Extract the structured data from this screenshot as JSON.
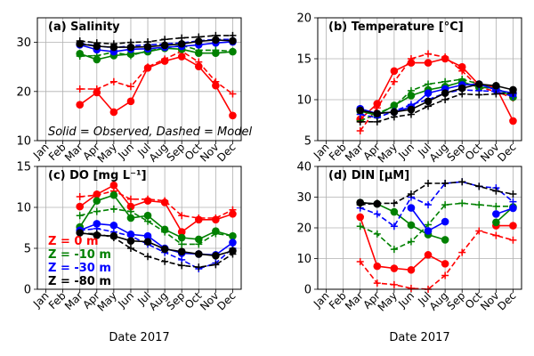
{
  "chart_data": {
    "type": "line",
    "months": [
      "Jan",
      "Feb",
      "Mar",
      "Apr",
      "May",
      "Jun",
      "Jul",
      "Aug",
      "Sep",
      "Oct",
      "Nov",
      "Dec"
    ],
    "xlabel": "Date 2017",
    "depth_colors": {
      "0 m": "#ff0000",
      "-10 m": "#008000",
      "-30 m": "#0000ff",
      "-80 m": "#000000"
    },
    "legend": [
      {
        "label": "Z =   0 m",
        "color": "#ff0000"
      },
      {
        "label": "Z =  -10 m",
        "color": "#008000"
      },
      {
        "label": "Z =  -30 m",
        "color": "#0000ff"
      },
      {
        "label": "Z =   -80 m",
        "color": "#000000"
      }
    ],
    "panels": [
      {
        "id": "salinity",
        "title": "(a) Salinity",
        "note": "Solid = Observed, Dashed = Model",
        "ylim": [
          10,
          35
        ],
        "yticks": [
          10,
          20,
          30
        ],
        "series": [
          {
            "kind": "observed",
            "color": "#ff0000",
            "x": [
              3,
              4,
              5,
              6,
              7,
              8,
              9,
              10,
              11,
              12
            ],
            "y": [
              17.3,
              19.8,
              15.8,
              18.0,
              24.8,
              26.2,
              27.1,
              25.1,
              21.2,
              15.1
            ]
          },
          {
            "kind": "model",
            "color": "#ff0000",
            "x": [
              3,
              4,
              5,
              6,
              7,
              8,
              9,
              10,
              11,
              12
            ],
            "y": [
              20.5,
              20.5,
              22.0,
              21.0,
              25.0,
              26.6,
              28.2,
              26.0,
              22.0,
              19.5
            ]
          },
          {
            "kind": "observed",
            "color": "#008000",
            "x": [
              3,
              4,
              5,
              6,
              7,
              8,
              9,
              10,
              11,
              12
            ],
            "y": [
              27.7,
              26.5,
              27.3,
              27.6,
              28.1,
              28.8,
              28.6,
              27.8,
              27.8,
              28.1
            ]
          },
          {
            "kind": "model",
            "color": "#008000",
            "x": [
              3,
              4,
              5,
              6,
              7,
              8,
              9,
              10,
              11,
              12
            ],
            "y": [
              27.2,
              27.3,
              28.0,
              27.3,
              28.3,
              28.8,
              29.4,
              28.4,
              28.4,
              28.2
            ]
          },
          {
            "kind": "observed",
            "color": "#0000ff",
            "x": [
              3,
              4,
              5,
              6,
              7,
              8,
              9,
              10,
              11,
              12
            ],
            "y": [
              29.5,
              28.5,
              28.1,
              28.6,
              28.7,
              29.0,
              29.2,
              29.5,
              29.9,
              30.1
            ]
          },
          {
            "kind": "model",
            "color": "#0000ff",
            "x": [
              3,
              4,
              5,
              6,
              7,
              8,
              9,
              10,
              11,
              12
            ],
            "y": [
              29.8,
              29.3,
              28.9,
              29.3,
              29.5,
              29.7,
              29.9,
              30.3,
              30.6,
              30.6
            ]
          },
          {
            "kind": "observed",
            "color": "#000000",
            "x": [
              3,
              4,
              5,
              6,
              7,
              8,
              9,
              10,
              11,
              12
            ],
            "y": [
              29.7,
              29.2,
              29.0,
              29.0,
              29.1,
              29.4,
              29.7,
              30.2,
              30.5,
              30.3
            ]
          },
          {
            "kind": "model",
            "color": "#000000",
            "x": [
              3,
              4,
              5,
              6,
              7,
              8,
              9,
              10,
              11,
              12
            ],
            "y": [
              30.3,
              29.9,
              29.7,
              30.0,
              30.1,
              30.6,
              30.9,
              31.1,
              31.4,
              31.4
            ]
          }
        ]
      },
      {
        "id": "temperature",
        "title": "(b) Temperature [°C]",
        "ylim": [
          5,
          20
        ],
        "yticks": [
          5,
          10,
          15,
          20
        ],
        "series": [
          {
            "kind": "observed",
            "color": "#ff0000",
            "x": [
              3,
              4,
              5,
              6,
              7,
              8,
              9,
              10,
              11,
              12
            ],
            "y": [
              7.6,
              9.5,
              13.5,
              14.5,
              14.5,
              15.0,
              14.0,
              11.8,
              11.5,
              7.4
            ]
          },
          {
            "kind": "model",
            "color": "#ff0000",
            "x": [
              3,
              4,
              5,
              6,
              7,
              8,
              9,
              10,
              11,
              12
            ],
            "y": [
              6.2,
              9.0,
              12.2,
              15.0,
              15.6,
              15.2,
              13.5,
              11.5,
              11.0,
              10.2
            ]
          },
          {
            "kind": "observed",
            "color": "#008000",
            "x": [
              3,
              4,
              5,
              6,
              7,
              8,
              9,
              10,
              11,
              12
            ],
            "y": [
              8.6,
              8.1,
              9.3,
              10.5,
              11.2,
              11.6,
              12.2,
              11.5,
              11.4,
              10.3
            ]
          },
          {
            "kind": "model",
            "color": "#008000",
            "x": [
              3,
              4,
              5,
              6,
              7,
              8,
              9,
              10,
              11,
              12
            ],
            "y": [
              7.4,
              8.3,
              9.2,
              11.1,
              11.9,
              12.2,
              12.5,
              11.9,
              11.3,
              10.6
            ]
          },
          {
            "kind": "observed",
            "color": "#0000ff",
            "x": [
              3,
              4,
              5,
              6,
              7,
              8,
              9,
              10,
              11,
              12
            ],
            "y": [
              8.9,
              8.3,
              8.5,
              9.1,
              10.8,
              11.3,
              11.8,
              11.9,
              11.2,
              10.8
            ]
          },
          {
            "kind": "model",
            "color": "#0000ff",
            "x": [
              3,
              4,
              5,
              6,
              7,
              8,
              9,
              10,
              11,
              12
            ],
            "y": [
              8.2,
              7.8,
              8.6,
              9.4,
              10.0,
              10.8,
              11.2,
              11.1,
              11.0,
              10.4
            ]
          },
          {
            "kind": "observed",
            "color": "#000000",
            "x": [
              3,
              4,
              5,
              6,
              7,
              8,
              9,
              10,
              11,
              12
            ],
            "y": [
              8.7,
              8.3,
              8.5,
              8.8,
              9.8,
              10.8,
              11.4,
              11.9,
              11.7,
              11.2
            ]
          },
          {
            "kind": "model",
            "color": "#000000",
            "x": [
              3,
              4,
              5,
              6,
              7,
              8,
              9,
              10,
              11,
              12
            ],
            "y": [
              7.3,
              7.3,
              7.9,
              8.2,
              9.2,
              10.0,
              10.7,
              10.6,
              10.7,
              10.8
            ]
          }
        ]
      },
      {
        "id": "do",
        "title": "(c) DO [mg L⁻¹]",
        "ylim": [
          0,
          15
        ],
        "yticks": [
          0,
          5,
          10,
          15
        ],
        "series": [
          {
            "kind": "observed",
            "color": "#ff0000",
            "x": [
              3,
              4,
              5,
              6,
              7,
              8,
              9,
              10,
              11,
              12
            ],
            "y": [
              10.1,
              11.6,
              12.7,
              10.1,
              10.8,
              10.6,
              7.0,
              8.5,
              8.5,
              9.2
            ]
          },
          {
            "kind": "model",
            "color": "#ff0000",
            "x": [
              3,
              4,
              5,
              6,
              7,
              8,
              9,
              10,
              11,
              12
            ],
            "y": [
              11.3,
              11.5,
              12.0,
              11.0,
              11.0,
              10.8,
              9.0,
              8.7,
              8.7,
              9.7
            ]
          },
          {
            "kind": "observed",
            "color": "#008000",
            "x": [
              3,
              4,
              5,
              6,
              7,
              8,
              9,
              10,
              11,
              12
            ],
            "y": [
              7.6,
              10.8,
              11.5,
              8.7,
              9.0,
              7.3,
              6.3,
              6.1,
              7.1,
              6.5
            ]
          },
          {
            "kind": "model",
            "color": "#008000",
            "x": [
              3,
              4,
              5,
              6,
              7,
              8,
              9,
              10,
              11,
              12
            ],
            "y": [
              9.0,
              9.5,
              9.8,
              9.5,
              8.3,
              7.0,
              5.5,
              5.5,
              6.8,
              6.5
            ]
          },
          {
            "kind": "observed",
            "color": "#0000ff",
            "x": [
              3,
              4,
              5,
              6,
              7,
              8,
              9,
              10,
              11,
              12
            ],
            "y": [
              7.2,
              8.0,
              7.8,
              6.7,
              6.5,
              5.0,
              4.4,
              4.3,
              4.2,
              5.7
            ]
          },
          {
            "kind": "model",
            "color": "#0000ff",
            "x": [
              3,
              4,
              5,
              6,
              7,
              8,
              9,
              10,
              11,
              12
            ],
            "y": [
              7.2,
              7.4,
              7.0,
              6.5,
              5.5,
              4.5,
              3.6,
              2.5,
              3.2,
              5.0
            ]
          },
          {
            "kind": "observed",
            "color": "#000000",
            "x": [
              3,
              4,
              5,
              6,
              7,
              8,
              9,
              10,
              11,
              12
            ],
            "y": [
              6.9,
              6.6,
              6.5,
              5.9,
              5.8,
              4.9,
              4.6,
              4.3,
              4.1,
              4.7
            ]
          },
          {
            "kind": "model",
            "color": "#000000",
            "x": [
              3,
              4,
              5,
              6,
              7,
              8,
              9,
              10,
              11,
              12
            ],
            "y": [
              6.8,
              6.8,
              6.3,
              5.0,
              4.0,
              3.4,
              2.9,
              2.7,
              3.0,
              4.3
            ]
          }
        ]
      },
      {
        "id": "din",
        "title": "(d) DIN  [μM]",
        "ylim": [
          0,
          40
        ],
        "yticks": [
          0,
          10,
          20,
          30,
          40
        ],
        "series": [
          {
            "kind": "observed",
            "color": "#ff0000",
            "x": [
              3,
              4,
              5,
              6,
              7,
              8
            ],
            "y": [
              23.5,
              7.5,
              6.8,
              6.3,
              11.2,
              8.3
            ]
          },
          {
            "kind": "observed",
            "color": "#ff0000",
            "x": [
              11,
              12
            ],
            "y": [
              20.7,
              20.7
            ]
          },
          {
            "kind": "model",
            "color": "#ff0000",
            "x": [
              3,
              4,
              5,
              6,
              7,
              8,
              9,
              10,
              11,
              12
            ],
            "y": [
              9.0,
              2.0,
              1.5,
              0.3,
              0.0,
              4.5,
              12.0,
              19.0,
              17.5,
              16.0
            ]
          },
          {
            "kind": "observed",
            "color": "#008000",
            "x": [
              3,
              4,
              5,
              6,
              7,
              8
            ],
            "y": [
              28.2,
              27.8,
              25.2,
              20.9,
              17.8,
              16.1
            ]
          },
          {
            "kind": "observed",
            "color": "#008000",
            "x": [
              11,
              12
            ],
            "y": [
              21.8,
              26.8
            ]
          },
          {
            "kind": "model",
            "color": "#008000",
            "x": [
              3,
              4,
              5,
              6,
              7,
              8,
              9,
              10,
              11,
              12
            ],
            "y": [
              20.5,
              18.0,
              13.0,
              15.5,
              21.0,
              27.5,
              28.0,
              27.5,
              27.0,
              27.0
            ]
          },
          {
            "kind": "observed",
            "color": "#0000ff",
            "x": [
              6,
              7,
              8
            ],
            "y": [
              26.5,
              19.0,
              22.0
            ]
          },
          {
            "kind": "observed",
            "color": "#0000ff",
            "x": [
              11,
              12
            ],
            "y": [
              24.5,
              26.4
            ]
          },
          {
            "kind": "model",
            "color": "#0000ff",
            "x": [
              3,
              4,
              5,
              6,
              7,
              8,
              9,
              10,
              11,
              12
            ],
            "y": [
              26.5,
              24.5,
              20.5,
              30.0,
              27.5,
              34.5,
              35.0,
              33.5,
              33.0,
              28.5
            ]
          },
          {
            "kind": "observed",
            "color": "#000000",
            "x": [
              3,
              4
            ],
            "y": [
              28.2,
              27.8
            ]
          },
          {
            "kind": "model",
            "color": "#000000",
            "x": [
              3,
              4,
              5,
              6,
              7,
              8,
              9,
              10,
              11,
              12
            ],
            "y": [
              27.5,
              28.0,
              28.0,
              31.0,
              34.5,
              34.5,
              35.0,
              33.5,
              32.0,
              31.0
            ]
          }
        ]
      }
    ]
  }
}
